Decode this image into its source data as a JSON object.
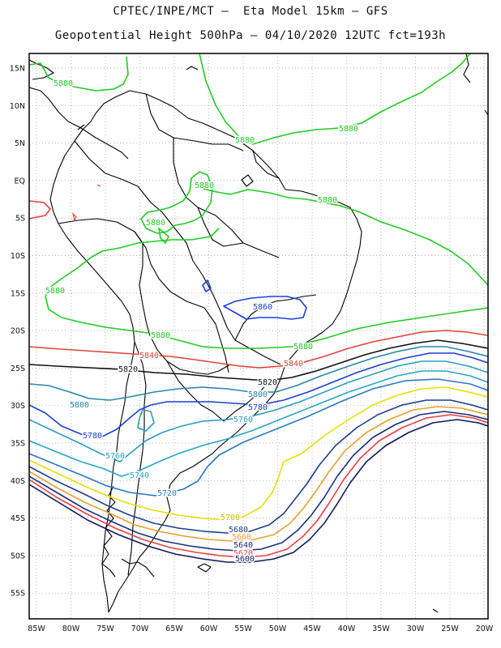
{
  "header": {
    "line1": "CPTEC/INPE/MCT –  Eta Model 15km – GFS",
    "line2": "Geopotential Height 500hPa – 04/10/2020 12UTC fct=193h"
  },
  "axes": {
    "lat_labels": [
      "15N",
      "10N",
      "5N",
      "EQ",
      "5S",
      "10S",
      "15S",
      "20S",
      "25S",
      "30S",
      "35S",
      "40S",
      "45S",
      "50S",
      "55S"
    ],
    "lon_labels": [
      "85W",
      "80W",
      "75W",
      "70W",
      "65W",
      "60W",
      "55W",
      "50W",
      "45W",
      "40W",
      "35W",
      "30W",
      "25W",
      "20W"
    ]
  },
  "contours": [
    {
      "value": "5880",
      "color": "#22cc22"
    },
    {
      "value": "5860",
      "color": "#1e3de0"
    },
    {
      "value": "5840",
      "color": "#e6423a"
    },
    {
      "value": "5820",
      "color": "#111111"
    },
    {
      "value": "5800",
      "color": "#2a86b0"
    },
    {
      "value": "5780",
      "color": "#1b3fd6"
    },
    {
      "value": "5760",
      "color": "#2a9ec0"
    },
    {
      "value": "5740",
      "color": "#2aa5c8"
    },
    {
      "value": "5720",
      "color": "#2a78c8"
    },
    {
      "value": "5700",
      "color": "#e8e000"
    },
    {
      "value": "5680",
      "color": "#1c3e8a"
    },
    {
      "value": "5660",
      "color": "#e8a030"
    },
    {
      "value": "5640",
      "color": "#1c2e7a"
    },
    {
      "value": "5620",
      "color": "#e84040"
    },
    {
      "value": "5600",
      "color": "#101a5a"
    }
  ]
}
